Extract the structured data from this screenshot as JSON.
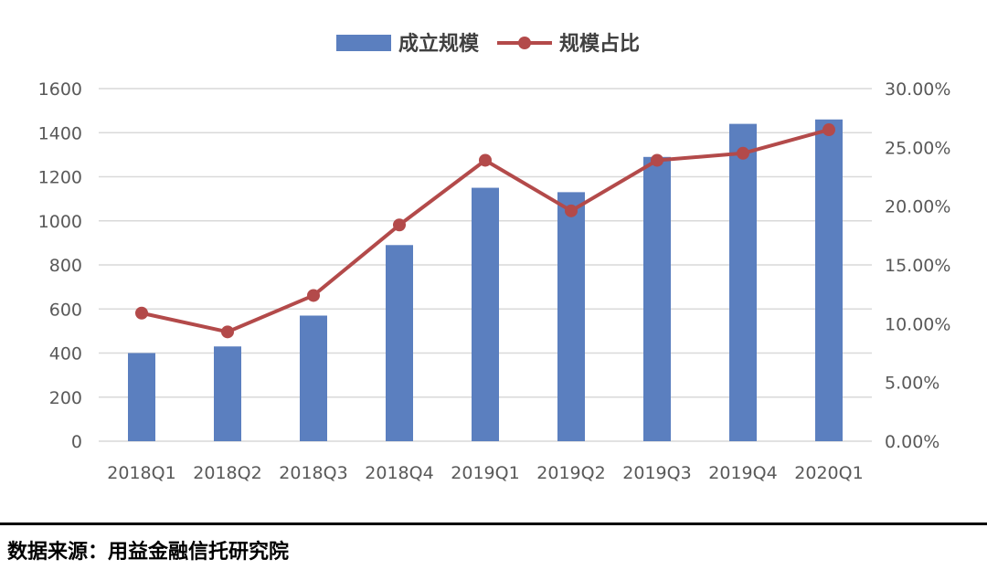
{
  "chart_data": {
    "type": "bar",
    "categories": [
      "2018Q1",
      "2018Q2",
      "2018Q3",
      "2018Q4",
      "2019Q1",
      "2019Q2",
      "2019Q3",
      "2019Q4",
      "2020Q1"
    ],
    "series": [
      {
        "name": "成立规模",
        "type": "bar",
        "axis": "left",
        "color": "#5B7FBF",
        "values": [
          400,
          430,
          570,
          890,
          1150,
          1130,
          1290,
          1440,
          1460
        ]
      },
      {
        "name": "规模占比",
        "type": "line",
        "axis": "right",
        "color": "#B34A4A",
        "values": [
          0.109,
          0.093,
          0.124,
          0.184,
          0.239,
          0.196,
          0.239,
          0.245,
          0.265
        ]
      }
    ],
    "ylim_left": [
      0,
      1600
    ],
    "ylim_right": [
      0,
      0.3
    ],
    "y_ticks_left": [
      "0",
      "200",
      "400",
      "600",
      "800",
      "1000",
      "1200",
      "1400",
      "1600"
    ],
    "y_ticks_right": [
      "0.00%",
      "5.00%",
      "10.00%",
      "15.00%",
      "20.00%",
      "25.00%",
      "30.00%"
    ],
    "grid": true,
    "legend_position": "top-center"
  },
  "source": "数据来源：用益金融信托研究院"
}
